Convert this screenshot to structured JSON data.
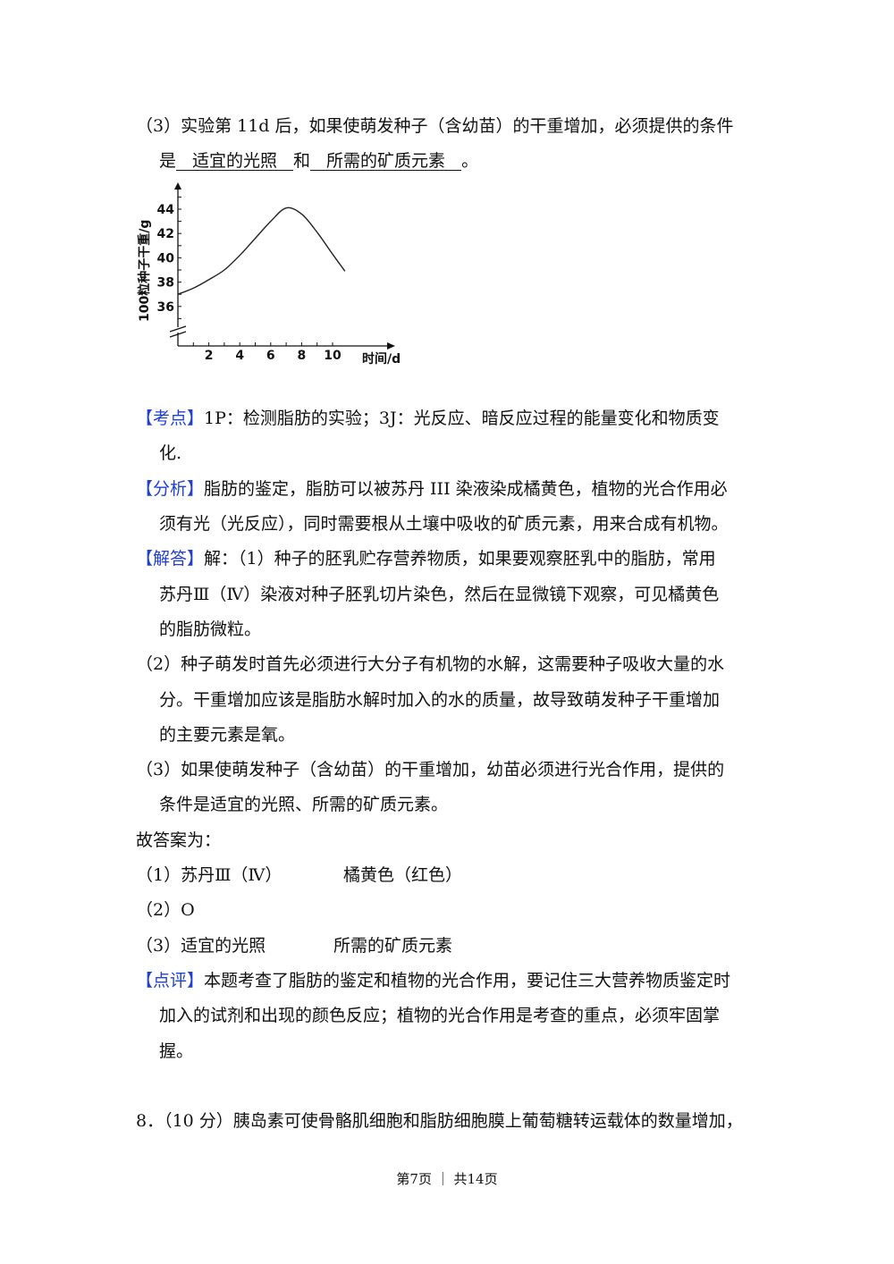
{
  "q3": {
    "line1": "（3）实验第 11d 后，如果使萌发种子（含幼苗）的干重增加，必须提供的条件",
    "prefix": "是",
    "blank1": "适宜的光照",
    "mid": "和",
    "blank2": "所需的矿质元素",
    "end": "。"
  },
  "chart_data": {
    "type": "line",
    "xlabel": "时间/d",
    "ylabel": "100粒种子干重/g",
    "x_ticks": [
      "2",
      "4",
      "6",
      "8",
      "10"
    ],
    "y_ticks": [
      "36",
      "38",
      "40",
      "42",
      "44"
    ],
    "xlim": [
      0,
      14
    ],
    "ylim": [
      34,
      46
    ],
    "y_axis_break": true,
    "grid": false,
    "series": [
      {
        "x": [
          0,
          1,
          2,
          3,
          4,
          5,
          6,
          7,
          8,
          9,
          10,
          10.8
        ],
        "y": [
          37,
          37.5,
          38.2,
          39,
          40.2,
          41.6,
          43,
          44.1,
          43.6,
          42.1,
          40.3,
          38.9
        ]
      }
    ]
  },
  "kaodian": {
    "tag": "【考点】",
    "line1": "1P：检测脂肪的实验；3J：光反应、暗反应过程的能量变化和物质变",
    "line2": "化."
  },
  "fenxi": {
    "tag": "【分析】",
    "line1": "脂肪的鉴定，脂肪可以被苏丹 III 染液染成橘黄色，植物的光合作用必",
    "line2": "须有光（光反应），同时需要根从土壤中吸收的矿质元素，用来合成有机物。"
  },
  "jieda": {
    "tag": "【解答】",
    "line1": "解：（1）种子的胚乳贮存营养物质，如果要观察胚乳中的脂肪，常用",
    "line2": "苏丹Ⅲ（Ⅳ）染液对种子胚乳切片染色，然后在显微镜下观察，可见橘黄色",
    "line3": "的脂肪微粒。",
    "p2_1": "（2）种子萌发时首先必须进行大分子有机物的水解，这需要种子吸收大量的水",
    "p2_2": "分。干重增加应该是脂肪水解时加入的水的质量，故导致萌发种子干重增加",
    "p2_3": "的主要元素是氧。",
    "p3_1": "（3）如果使萌发种子（含幼苗）的干重增加，幼苗必须进行光合作用，提供的",
    "p3_2": "条件是适宜的光照、所需的矿质元素。"
  },
  "answer": {
    "label": "故答案为：",
    "a1": "（1）苏丹Ⅲ（Ⅳ）",
    "a1b": "橘黄色（红色）",
    "a2": "（2）O",
    "a3": "（3）适宜的光照",
    "a3b": "所需的矿质元素"
  },
  "dianping": {
    "tag": "【点评】",
    "line1": "本题考查了脂肪的鉴定和植物的光合作用，要记住三大营养物质鉴定时",
    "line2": "加入的试剂和出现的颜色反应；植物的光合作用是考查的重点，必须牢固掌",
    "line3": "握。"
  },
  "q8": {
    "line1": "8．（10 分）胰岛素可使骨骼肌细胞和脂肪细胞膜上葡萄糖转运载体的数量增加，"
  },
  "footer": {
    "text": "第7页 ｜ 共14页"
  }
}
